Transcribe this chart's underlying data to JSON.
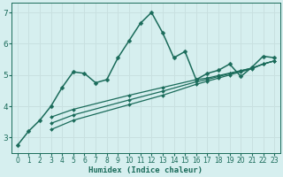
{
  "xlabel": "Humidex (Indice chaleur)",
  "bg_color": "#d6efef",
  "line_color": "#1a6b5a",
  "grid_color": "#c8e0e0",
  "xlim": [
    -0.5,
    23.5
  ],
  "ylim": [
    2.5,
    7.3
  ],
  "yticks": [
    3,
    4,
    5,
    6,
    7
  ],
  "xticks": [
    0,
    1,
    2,
    3,
    4,
    5,
    6,
    7,
    8,
    9,
    10,
    11,
    12,
    13,
    14,
    15,
    16,
    17,
    18,
    19,
    20,
    21,
    22,
    23
  ],
  "series": [
    {
      "x": [
        0,
        1,
        2,
        3,
        4,
        5,
        6,
        7,
        8,
        9,
        10,
        11,
        12,
        13,
        14,
        15,
        16,
        17,
        18,
        19,
        20,
        21,
        22,
        23
      ],
      "y": [
        2.75,
        3.2,
        3.55,
        4.0,
        4.6,
        5.1,
        5.05,
        4.75,
        4.85,
        5.55,
        6.1,
        6.65,
        7.0,
        6.35,
        5.55,
        5.75,
        4.85,
        5.05,
        5.15,
        5.35,
        4.95,
        5.25,
        5.6,
        5.55
      ],
      "marker": "D",
      "markersize": 2.5,
      "linewidth": 1.1
    },
    {
      "x": [
        3,
        5,
        10,
        13,
        16,
        17,
        18,
        19,
        20,
        21,
        22,
        23
      ],
      "y": [
        3.65,
        3.9,
        4.35,
        4.6,
        4.85,
        4.9,
        4.98,
        5.06,
        5.14,
        5.22,
        5.35,
        5.45
      ],
      "marker": "D",
      "markersize": 2.0,
      "linewidth": 0.9
    },
    {
      "x": [
        3,
        5,
        10,
        13,
        16,
        17,
        18,
        19,
        20,
        21,
        22,
        23
      ],
      "y": [
        3.45,
        3.72,
        4.2,
        4.48,
        4.78,
        4.86,
        4.95,
        5.04,
        5.13,
        5.22,
        5.35,
        5.45
      ],
      "marker": "D",
      "markersize": 2.0,
      "linewidth": 0.9
    },
    {
      "x": [
        3,
        5,
        10,
        13,
        16,
        17,
        18,
        19,
        20,
        21,
        22,
        23
      ],
      "y": [
        3.25,
        3.55,
        4.05,
        4.35,
        4.7,
        4.8,
        4.9,
        5.0,
        5.1,
        5.2,
        5.35,
        5.45
      ],
      "marker": "D",
      "markersize": 2.0,
      "linewidth": 0.9
    }
  ]
}
